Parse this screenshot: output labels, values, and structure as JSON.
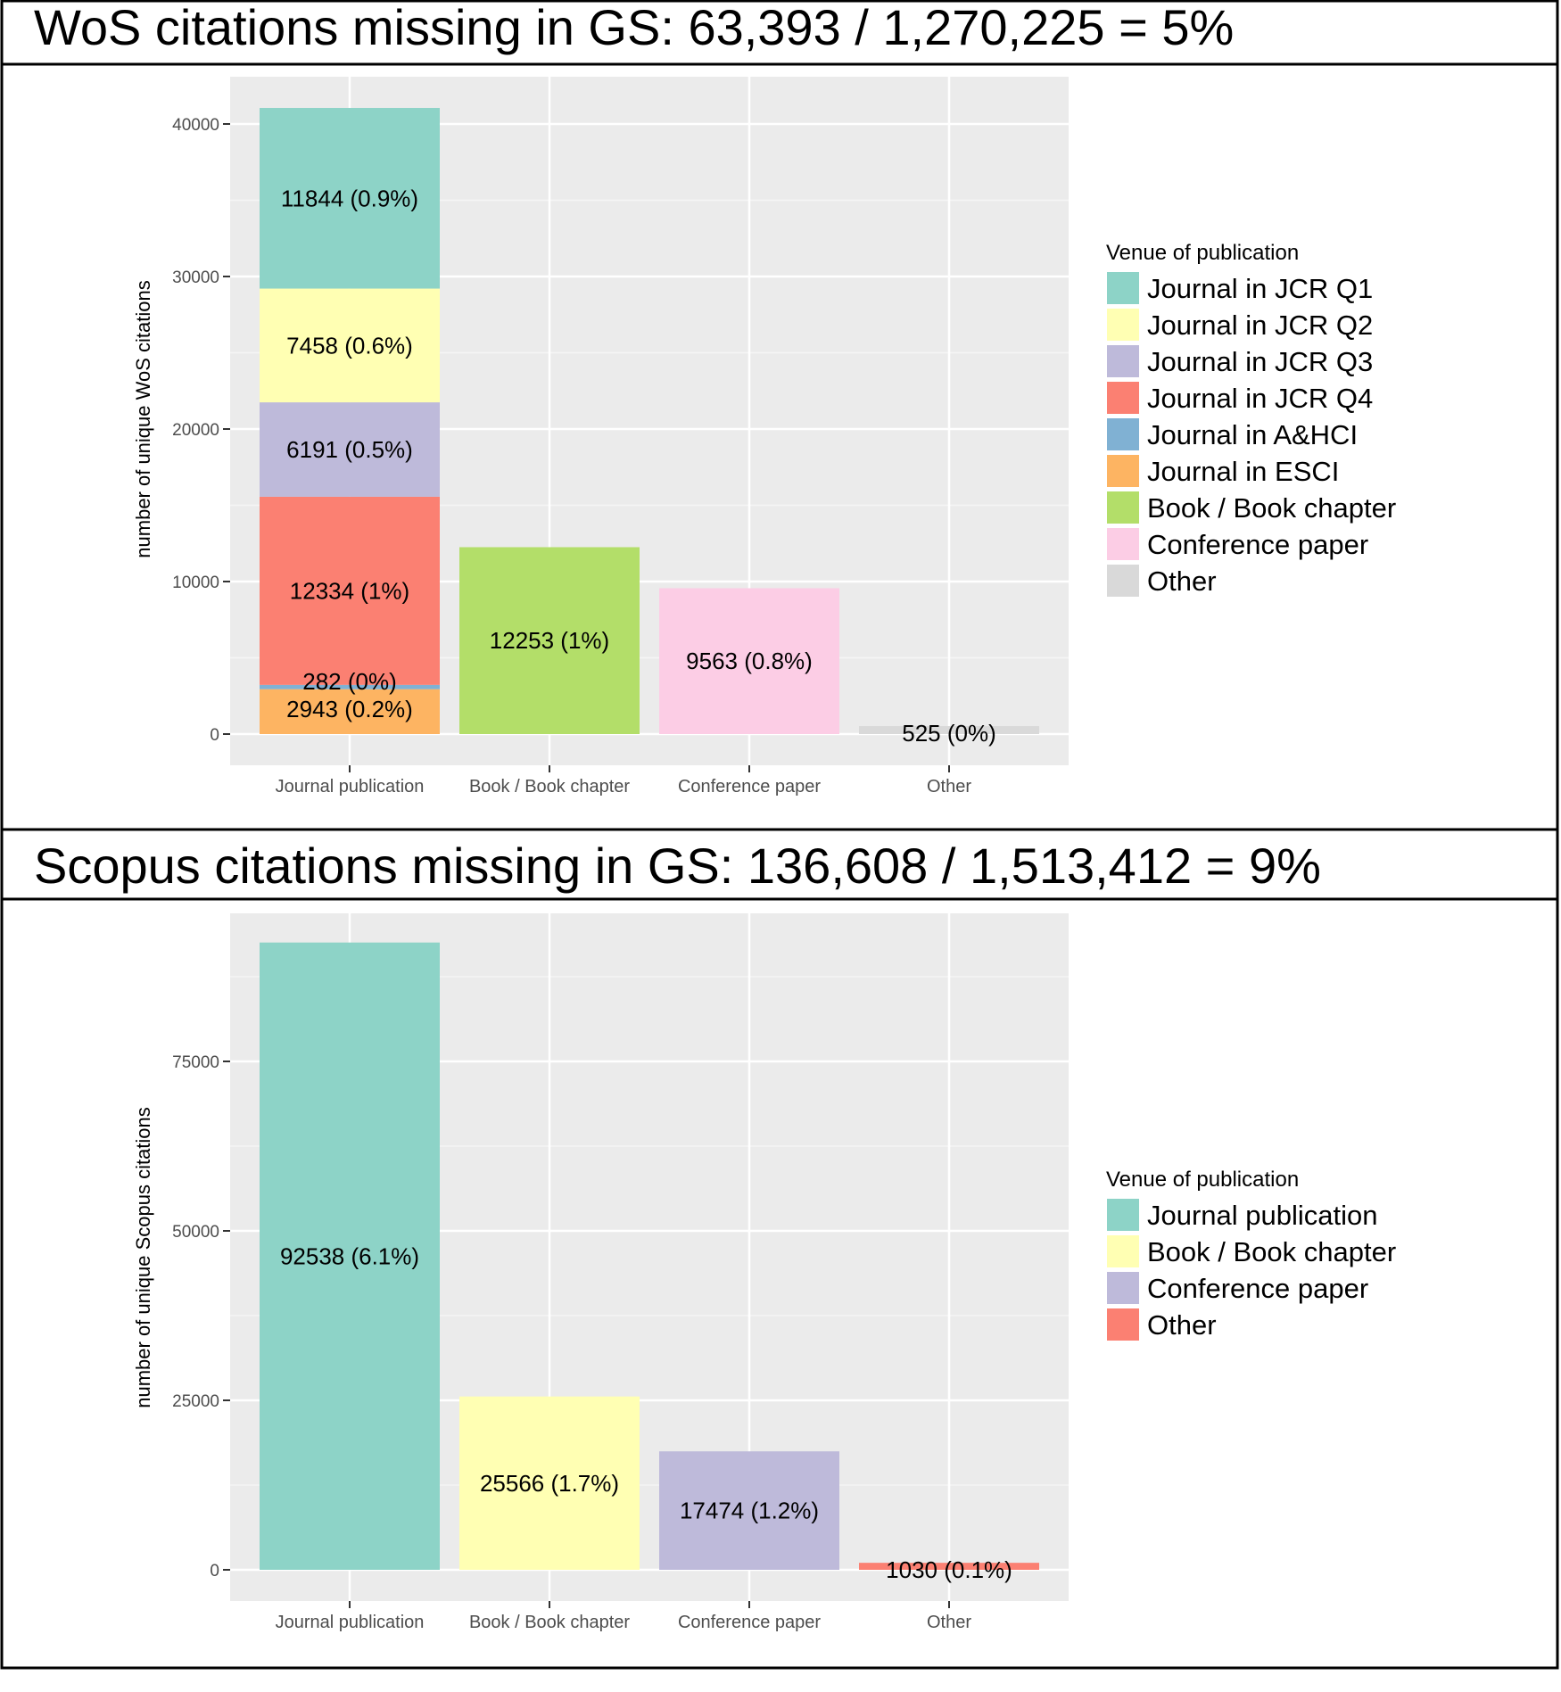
{
  "chart_data": [
    {
      "type": "bar",
      "title": "WoS citations missing in GS: 63,393 / 1,270,225 = 5%",
      "xlabel": "",
      "ylabel": "number of unique WoS citations",
      "ylim": [
        0,
        41000
      ],
      "yticks": [
        "0",
        "10000",
        "20000",
        "30000",
        "40000"
      ],
      "ytick_values": [
        0,
        10000,
        20000,
        30000,
        40000
      ],
      "categories": [
        "Journal publication",
        "Book / Book chapter",
        "Conference paper",
        "Other"
      ],
      "grid": true,
      "legend": {
        "title": "Venue of publication",
        "position": "right",
        "entries": [
          {
            "name": "Journal in JCR Q1",
            "color": "#8dd3c7"
          },
          {
            "name": "Journal in JCR Q2",
            "color": "#ffffb3"
          },
          {
            "name": "Journal in JCR Q3",
            "color": "#bebada"
          },
          {
            "name": "Journal in JCR Q4",
            "color": "#fb8072"
          },
          {
            "name": "Journal in A&HCI",
            "color": "#80b1d3"
          },
          {
            "name": "Journal in ESCI",
            "color": "#fdb462"
          },
          {
            "name": "Book / Book chapter",
            "color": "#b3de69"
          },
          {
            "name": "Conference paper",
            "color": "#fccde5"
          },
          {
            "name": "Other",
            "color": "#d9d9d9"
          }
        ]
      },
      "stacks": [
        {
          "category": "Journal publication",
          "segments": [
            {
              "series": "Journal in ESCI",
              "value": 2943,
              "label": "2943 (0.2%)"
            },
            {
              "series": "Journal in A&HCI",
              "value": 282,
              "label": "282 (0%)"
            },
            {
              "series": "Journal in JCR Q4",
              "value": 12334,
              "label": "12334 (1%)"
            },
            {
              "series": "Journal in JCR Q3",
              "value": 6191,
              "label": "6191 (0.5%)"
            },
            {
              "series": "Journal in JCR Q2",
              "value": 7458,
              "label": "7458 (0.6%)"
            },
            {
              "series": "Journal in JCR Q1",
              "value": 11844,
              "label": "11844 (0.9%)"
            }
          ]
        },
        {
          "category": "Book / Book chapter",
          "segments": [
            {
              "series": "Book / Book chapter",
              "value": 12253,
              "label": "12253 (1%)"
            }
          ]
        },
        {
          "category": "Conference paper",
          "segments": [
            {
              "series": "Conference paper",
              "value": 9563,
              "label": "9563 (0.8%)"
            }
          ]
        },
        {
          "category": "Other",
          "segments": [
            {
              "series": "Other",
              "value": 525,
              "label": "525 (0%)"
            }
          ]
        }
      ]
    },
    {
      "type": "bar",
      "title": "Scopus citations missing in GS: 136,608 / 1,513,412 = 9%",
      "xlabel": "",
      "ylabel": "number of unique Scopus citations",
      "ylim": [
        0,
        97000
      ],
      "yticks": [
        "0",
        "25000",
        "50000",
        "75000"
      ],
      "ytick_values": [
        0,
        25000,
        50000,
        75000
      ],
      "categories": [
        "Journal publication",
        "Book / Book chapter",
        "Conference paper",
        "Other"
      ],
      "grid": true,
      "legend": {
        "title": "Venue of publication",
        "position": "right",
        "entries": [
          {
            "name": "Journal publication",
            "color": "#8dd3c7"
          },
          {
            "name": "Book / Book chapter",
            "color": "#ffffb3"
          },
          {
            "name": "Conference paper",
            "color": "#bebada"
          },
          {
            "name": "Other",
            "color": "#fb8072"
          }
        ]
      },
      "stacks": [
        {
          "category": "Journal publication",
          "segments": [
            {
              "series": "Journal publication",
              "value": 92538,
              "label": "92538 (6.1%)"
            }
          ]
        },
        {
          "category": "Book / Book chapter",
          "segments": [
            {
              "series": "Book / Book chapter",
              "value": 25566,
              "label": "25566 (1.7%)"
            }
          ]
        },
        {
          "category": "Conference paper",
          "segments": [
            {
              "series": "Conference paper",
              "value": 17474,
              "label": "17474 (1.2%)"
            }
          ]
        },
        {
          "category": "Other",
          "segments": [
            {
              "series": "Other",
              "value": 1030,
              "label": "1030 (0.1%)"
            }
          ]
        }
      ]
    }
  ]
}
